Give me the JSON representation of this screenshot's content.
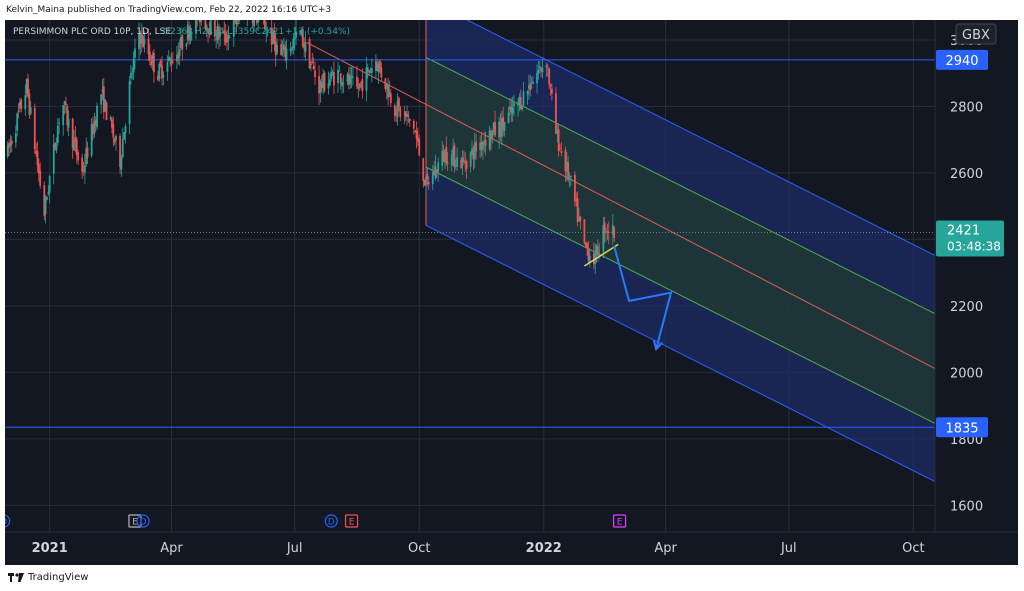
{
  "publisher_line": "Kelvin_Maina published on TradingView.com, Feb 22, 2022 16:16 UTC+3",
  "footer_brand": "TradingView",
  "footer_logo": "tradingview-logo-icon",
  "colors": {
    "background": "#131722",
    "grid": "#2a2e39",
    "candle_up": "#26a69a",
    "candle_down": "#ef5350",
    "channel_outer_fill": "#1c2c66",
    "channel_inner_fill": "#1f3a2e",
    "channel_border": "#2962ff",
    "inner_border": "#4caf50",
    "median_line": "#e25c5c",
    "horizontal_line": "#2962ff",
    "projection_arrow": "#2979ff",
    "yellow_segment": "#e8d44d"
  },
  "chart_data": {
    "type": "candlestick",
    "symbol_line": {
      "name": "PERSIMMON PLC ORD 10P, 1D, LSE",
      "open": "O2363",
      "high": "H2434",
      "low": "L2359",
      "close": "C2421",
      "change": "+13 (+0.54%)"
    },
    "currency": "GBX",
    "y_ticks": [
      1600,
      1800,
      2000,
      2200,
      2400,
      2600,
      2800,
      3000
    ],
    "y_labels": [
      "1600",
      "1800",
      "2000",
      "2200",
      "2600",
      "2800",
      "3000"
    ],
    "ylim": [
      1520,
      3060
    ],
    "x_labels": [
      {
        "label": "2021",
        "date": "2021-01-01",
        "bold": true
      },
      {
        "label": "Apr",
        "date": "2021-04-01",
        "bold": false
      },
      {
        "label": "Jul",
        "date": "2021-07-01",
        "bold": false
      },
      {
        "label": "Oct",
        "date": "2021-10-01",
        "bold": false
      },
      {
        "label": "2022",
        "date": "2022-01-01",
        "bold": true
      },
      {
        "label": "Apr",
        "date": "2022-04-01",
        "bold": false
      },
      {
        "label": "Jul",
        "date": "2022-07-01",
        "bold": false
      },
      {
        "label": "Oct",
        "date": "2022-10-01",
        "bold": false
      }
    ],
    "xlim": [
      "2020-11-29",
      "2022-10-17"
    ],
    "price_path": [
      [
        "2020-12-01",
        2660
      ],
      [
        "2020-12-15",
        2860
      ],
      [
        "2020-12-28",
        2480
      ],
      [
        "2021-01-10",
        2820
      ],
      [
        "2021-01-25",
        2600
      ],
      [
        "2021-02-08",
        2840
      ],
      [
        "2021-02-22",
        2640
      ],
      [
        "2021-03-01",
        2860
      ],
      [
        "2021-03-08",
        3020
      ],
      [
        "2021-03-22",
        2900
      ],
      [
        "2021-04-05",
        2960
      ],
      [
        "2021-04-20",
        3080
      ],
      [
        "2021-05-10",
        3000
      ],
      [
        "2021-05-25",
        3090
      ],
      [
        "2021-06-07",
        3060
      ],
      [
        "2021-06-21",
        2950
      ],
      [
        "2021-07-05",
        3020
      ],
      [
        "2021-07-19",
        2860
      ],
      [
        "2021-08-02",
        2900
      ],
      [
        "2021-08-16",
        2850
      ],
      [
        "2021-08-30",
        2940
      ],
      [
        "2021-09-13",
        2800
      ],
      [
        "2021-09-27",
        2740
      ],
      [
        "2021-10-06",
        2560
      ],
      [
        "2021-10-20",
        2660
      ],
      [
        "2021-11-03",
        2630
      ],
      [
        "2021-11-17",
        2700
      ],
      [
        "2021-12-01",
        2740
      ],
      [
        "2021-12-15",
        2820
      ],
      [
        "2021-12-27",
        2900
      ],
      [
        "2022-01-03",
        2940
      ],
      [
        "2022-01-10",
        2720
      ],
      [
        "2022-01-20",
        2580
      ],
      [
        "2022-01-31",
        2380
      ],
      [
        "2022-02-08",
        2340
      ],
      [
        "2022-02-15",
        2440
      ],
      [
        "2022-02-22",
        2421
      ]
    ],
    "horizontal_levels": [
      {
        "value": 2940,
        "label": "2940"
      },
      {
        "value": 1835,
        "label": "1835"
      }
    ],
    "last_price": {
      "value": 2421,
      "label": "2421",
      "countdown": "03:48:38"
    },
    "median_line_start": [
      "2021-07-10",
      2992
    ],
    "channel": {
      "anchor_top": [
        "2022-01-03",
        2940
      ],
      "anchor_bottom": [
        "2021-10-06",
        2480
      ],
      "end_date": "2022-10-17",
      "inner_top_offset": -165,
      "inner_bottom_offset": 165,
      "outer_offset": 340
    },
    "yellow_segment": [
      [
        "2022-01-31",
        2320
      ],
      [
        "2022-02-25",
        2385
      ]
    ],
    "projection_path": [
      [
        "2022-02-22",
        2380
      ],
      [
        "2022-03-05",
        2215
      ],
      [
        "2022-04-05",
        2240
      ],
      [
        "2022-03-25",
        2070
      ]
    ],
    "event_markers": [
      {
        "letter": "D",
        "date": "2020-11-28",
        "kind": "dividend"
      },
      {
        "letter": "E",
        "date": "2021-03-05",
        "kind": "earnings"
      },
      {
        "letter": "D",
        "date": "2021-03-11",
        "kind": "dividend"
      },
      {
        "letter": "D",
        "date": "2021-07-28",
        "kind": "dividend"
      },
      {
        "letter": "E",
        "date": "2021-08-12",
        "kind": "earnings"
      },
      {
        "letter": "E",
        "date": "2022-02-26",
        "kind": "earnings"
      }
    ]
  }
}
